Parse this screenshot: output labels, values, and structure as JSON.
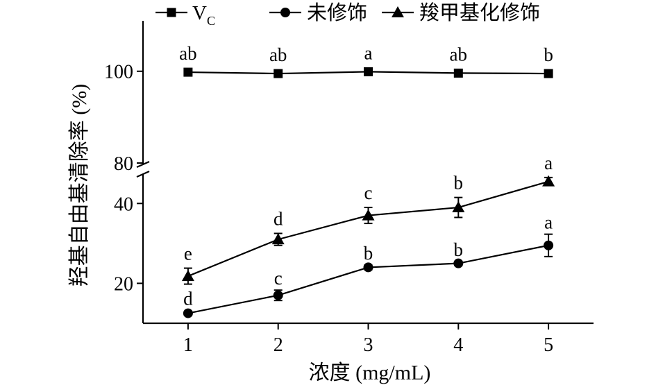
{
  "chart_data": {
    "type": "line",
    "xlabel": "浓度 (mg/mL)",
    "ylabel": "羟基自由基清除率 (%)",
    "x": [
      1,
      2,
      3,
      4,
      5
    ],
    "xlim": [
      0.5,
      5.5
    ],
    "y_axis_break": {
      "upper_segment": {
        "range": [
          80,
          111
        ],
        "ticks": [
          100,
          80
        ]
      },
      "lower_segment": {
        "range": [
          10,
          47
        ],
        "ticks": [
          40,
          20
        ]
      }
    },
    "grid": false,
    "legend_placement": "top",
    "series": [
      {
        "name_main": "V",
        "name_sub": "C",
        "marker": "square",
        "values": [
          99.8,
          99.5,
          99.9,
          99.6,
          99.5
        ],
        "errors": [
          0.3,
          0.3,
          0.3,
          0.3,
          0.3
        ],
        "significance": [
          "ab",
          "ab",
          "a",
          "ab",
          "b"
        ]
      },
      {
        "name": "未修饰",
        "marker": "circle",
        "values": [
          12.5,
          17.0,
          24.0,
          25.0,
          29.5
        ],
        "errors": [
          0.5,
          1.3,
          0.6,
          0.5,
          2.8
        ],
        "significance": [
          "d",
          "c",
          "b",
          "b",
          "a"
        ]
      },
      {
        "name": "羧甲基化修饰",
        "marker": "triangle",
        "values": [
          21.8,
          31.0,
          37.0,
          39.0,
          45.5
        ],
        "errors": [
          2.0,
          1.5,
          2.0,
          2.5,
          1.0
        ],
        "significance": [
          "e",
          "d",
          "c",
          "b",
          "a"
        ]
      }
    ]
  }
}
